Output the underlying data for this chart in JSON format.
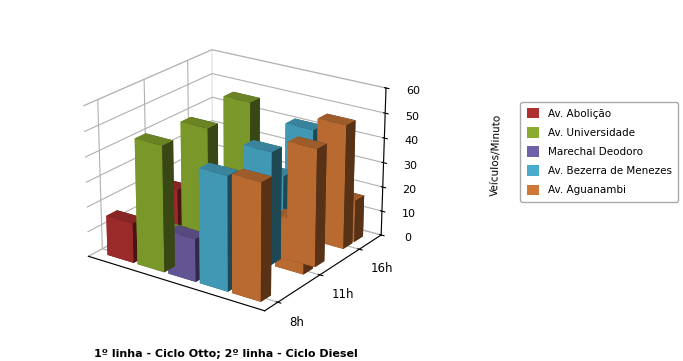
{
  "xlabel": "1º linha - Ciclo Otto; 2º linha - Ciclo Diesel",
  "ylabel": "Veículos/Minuto",
  "times": [
    "8h",
    "11h",
    "16h"
  ],
  "streets": [
    "Av. Abolição",
    "Av. Universidade",
    "Marechal Deodoro",
    "Av. Bezerra de Menezes",
    "Av. Aguanambi"
  ],
  "colors": [
    "#b03030",
    "#8aab30",
    "#7060a8",
    "#4aaccc",
    "#d07838"
  ],
  "otto": {
    "8h": [
      16,
      50,
      17,
      45,
      46
    ],
    "11h": [
      20,
      48,
      12,
      45,
      21
    ],
    "16h": [
      13,
      50,
      15,
      45,
      50
    ]
  },
  "diesel": {
    "8h": [
      3,
      13,
      0,
      0,
      0
    ],
    "11h": [
      2,
      9,
      7,
      33,
      47
    ],
    "16h": [
      3,
      6,
      4,
      14,
      17
    ]
  },
  "zlim": [
    0,
    60
  ],
  "zticks": [
    0,
    10,
    20,
    30,
    40,
    50,
    60
  ],
  "background_color": "#ffffff",
  "fig_width": 6.83,
  "fig_height": 3.61,
  "dpi": 100,
  "elev": 22,
  "azim": -55
}
